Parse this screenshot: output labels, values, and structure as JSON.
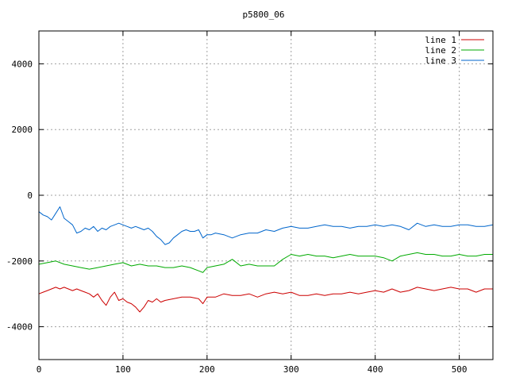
{
  "chart_data": {
    "type": "line",
    "title": "p5800_06",
    "xlabel": "",
    "ylabel": "",
    "xlim": [
      0,
      540
    ],
    "ylim": [
      -5000,
      5000
    ],
    "x_ticks": [
      0,
      100,
      200,
      300,
      400,
      500
    ],
    "y_ticks": [
      -4000,
      -2000,
      0,
      2000,
      4000
    ],
    "grid": true,
    "legend": "top-right",
    "series": [
      {
        "name": "line 1",
        "color": "#cc0000",
        "x": [
          0,
          5,
          10,
          15,
          20,
          25,
          30,
          35,
          40,
          45,
          50,
          55,
          60,
          65,
          70,
          75,
          80,
          85,
          90,
          95,
          100,
          105,
          110,
          115,
          120,
          125,
          130,
          135,
          140,
          145,
          150,
          160,
          170,
          180,
          190,
          195,
          200,
          210,
          220,
          230,
          240,
          250,
          260,
          270,
          280,
          290,
          300,
          310,
          320,
          330,
          340,
          350,
          360,
          370,
          380,
          390,
          400,
          410,
          420,
          430,
          440,
          450,
          460,
          470,
          480,
          490,
          500,
          510,
          520,
          530,
          540
        ],
        "values": [
          -3000,
          -2950,
          -2900,
          -2850,
          -2800,
          -2850,
          -2800,
          -2850,
          -2900,
          -2850,
          -2900,
          -2950,
          -3000,
          -3100,
          -3000,
          -3200,
          -3350,
          -3100,
          -2950,
          -3200,
          -3150,
          -3250,
          -3300,
          -3400,
          -3550,
          -3400,
          -3200,
          -3250,
          -3150,
          -3250,
          -3200,
          -3150,
          -3100,
          -3100,
          -3150,
          -3300,
          -3100,
          -3100,
          -3000,
          -3050,
          -3050,
          -3000,
          -3100,
          -3000,
          -2950,
          -3000,
          -2950,
          -3050,
          -3050,
          -3000,
          -3050,
          -3000,
          -3000,
          -2950,
          -3000,
          -2950,
          -2900,
          -2950,
          -2850,
          -2950,
          -2900,
          -2800,
          -2850,
          -2900,
          -2850,
          -2800,
          -2850,
          -2850,
          -2950,
          -2850,
          -2850
        ]
      },
      {
        "name": "line 2",
        "color": "#00aa00",
        "x": [
          0,
          10,
          20,
          30,
          40,
          50,
          60,
          70,
          80,
          90,
          100,
          110,
          120,
          130,
          140,
          150,
          160,
          170,
          180,
          190,
          195,
          200,
          210,
          220,
          230,
          240,
          250,
          260,
          270,
          280,
          290,
          300,
          310,
          320,
          330,
          340,
          350,
          360,
          370,
          380,
          390,
          400,
          410,
          420,
          430,
          440,
          450,
          460,
          470,
          480,
          490,
          500,
          510,
          520,
          530,
          540
        ],
        "values": [
          -2100,
          -2050,
          -2000,
          -2100,
          -2150,
          -2200,
          -2250,
          -2200,
          -2150,
          -2100,
          -2050,
          -2150,
          -2100,
          -2150,
          -2150,
          -2200,
          -2200,
          -2150,
          -2200,
          -2300,
          -2350,
          -2200,
          -2150,
          -2100,
          -1950,
          -2150,
          -2100,
          -2150,
          -2150,
          -2150,
          -1950,
          -1800,
          -1850,
          -1800,
          -1850,
          -1850,
          -1900,
          -1850,
          -1800,
          -1850,
          -1850,
          -1850,
          -1900,
          -2000,
          -1850,
          -1800,
          -1750,
          -1800,
          -1800,
          -1850,
          -1850,
          -1800,
          -1850,
          -1850,
          -1800,
          -1800
        ]
      },
      {
        "name": "line 3",
        "color": "#0066cc",
        "x": [
          0,
          5,
          10,
          15,
          20,
          25,
          30,
          35,
          40,
          45,
          50,
          55,
          60,
          65,
          70,
          75,
          80,
          85,
          90,
          95,
          100,
          105,
          110,
          115,
          120,
          125,
          130,
          135,
          140,
          145,
          150,
          155,
          160,
          165,
          170,
          175,
          180,
          185,
          190,
          195,
          200,
          205,
          210,
          220,
          230,
          240,
          250,
          260,
          270,
          280,
          290,
          300,
          310,
          320,
          330,
          340,
          350,
          360,
          370,
          380,
          390,
          400,
          410,
          420,
          430,
          440,
          450,
          460,
          470,
          480,
          490,
          500,
          510,
          520,
          530,
          540
        ],
        "values": [
          -500,
          -600,
          -650,
          -750,
          -550,
          -350,
          -700,
          -800,
          -900,
          -1150,
          -1100,
          -1000,
          -1050,
          -950,
          -1100,
          -1000,
          -1050,
          -950,
          -900,
          -850,
          -900,
          -950,
          -1000,
          -950,
          -1000,
          -1050,
          -1000,
          -1100,
          -1250,
          -1350,
          -1500,
          -1450,
          -1300,
          -1200,
          -1100,
          -1050,
          -1100,
          -1100,
          -1050,
          -1300,
          -1200,
          -1200,
          -1150,
          -1200,
          -1300,
          -1200,
          -1150,
          -1150,
          -1050,
          -1100,
          -1000,
          -950,
          -1000,
          -1000,
          -950,
          -900,
          -950,
          -950,
          -1000,
          -950,
          -950,
          -900,
          -950,
          -900,
          -950,
          -1050,
          -850,
          -950,
          -900,
          -950,
          -950,
          -900,
          -900,
          -950,
          -950,
          -900
        ]
      }
    ]
  }
}
